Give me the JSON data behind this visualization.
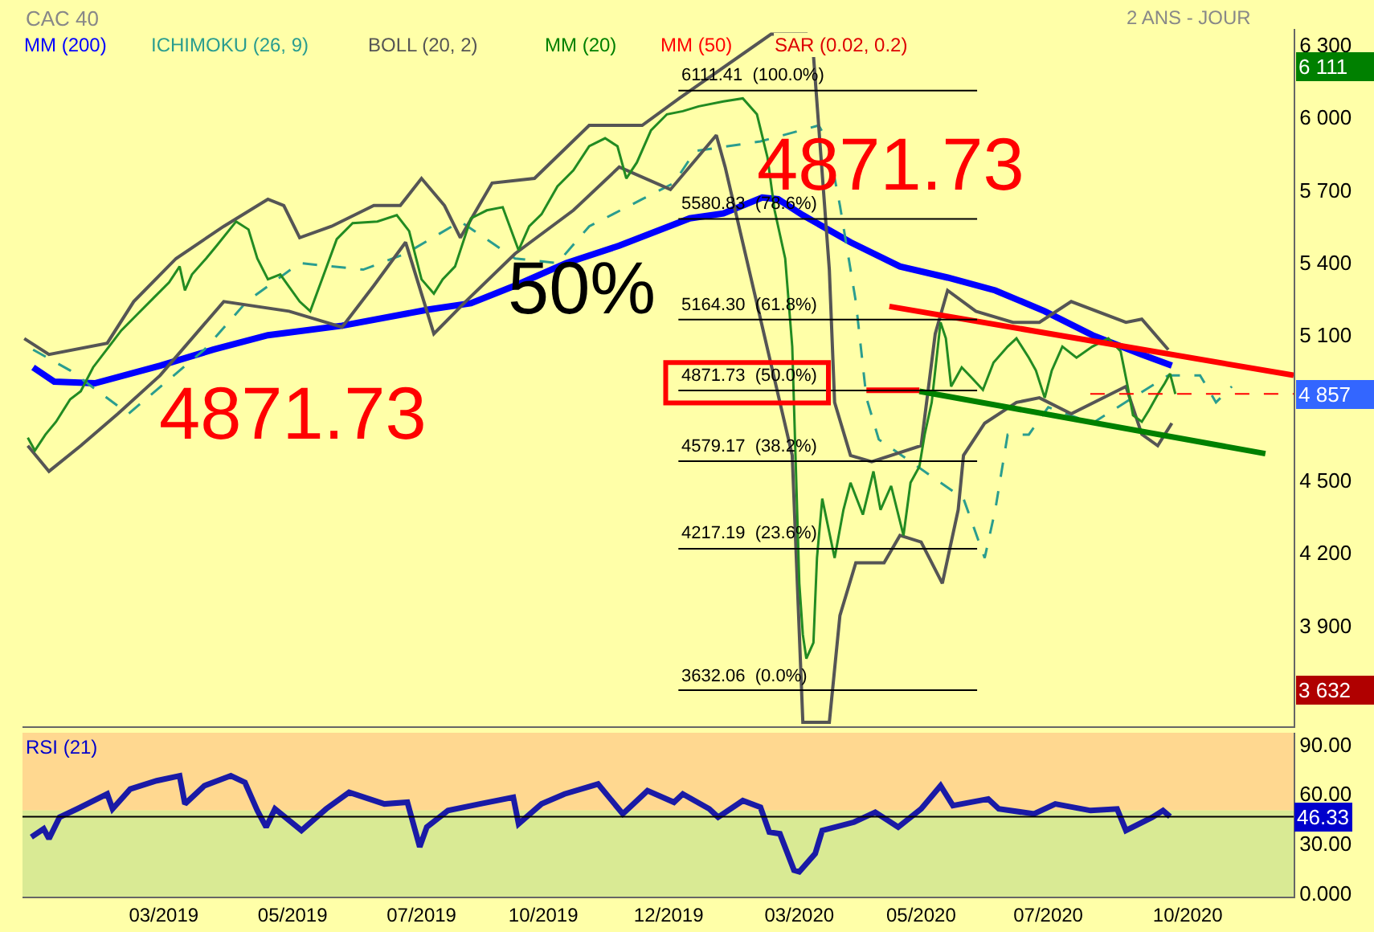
{
  "chart_data": [
    {
      "type": "line",
      "title": "CAC 40",
      "subtitle": "2 ANS - JOUR",
      "legend": "top left",
      "tick_labels": "y",
      "xlim": [
        "2018-12-11",
        "2020-11-30"
      ],
      "ylim": [
        3483,
        6366
      ],
      "yticks": [
        {
          "value": 3900,
          "label": "3 900"
        },
        {
          "value": 4200,
          "label": "4 200"
        },
        {
          "value": 4500,
          "label": "4 500"
        },
        {
          "value": 5100,
          "label": "5 100"
        },
        {
          "value": 5400,
          "label": "5 400"
        },
        {
          "value": 5700,
          "label": "5 700"
        },
        {
          "value": 6000,
          "label": "6 000"
        },
        {
          "value": 6300,
          "label": "6 300"
        }
      ],
      "series": [
        {
          "name": "MM (200)",
          "color": "#0000ff",
          "x": [
            "2018-12-17",
            "2018-12-29",
            "2019-01-21",
            "2019-02-27",
            "2019-03-29",
            "2019-04-29",
            "2019-06-10",
            "2019-07-29",
            "2019-08-22",
            "2019-09-16",
            "2019-10-15",
            "2019-11-14",
            "2019-12-24",
            "2020-01-12",
            "2020-02-03",
            "2020-02-12",
            "2020-02-26",
            "2020-03-24",
            "2020-04-21",
            "2020-05-18",
            "2020-06-14",
            "2020-07-12",
            "2020-08-08",
            "2020-09-05",
            "2020-09-22"
          ],
          "values": [
            4967,
            4908,
            4901,
            4974,
            5040,
            5100,
            5139,
            5206,
            5232,
            5305,
            5398,
            5470,
            5583,
            5603,
            5669,
            5662,
            5596,
            5484,
            5384,
            5338,
            5285,
            5199,
            5100,
            5020,
            4974
          ]
        },
        {
          "name": "ICHIMOKU (26, 9)",
          "color": "#2a9d8f",
          "line_style": "dashed",
          "x": [
            "2018-12-17",
            "2019-01-07",
            "2019-02-09",
            "2019-03-24",
            "2019-04-17",
            "2019-05-17",
            "2019-06-22",
            "2019-07-16",
            "2019-08-16",
            "2019-09-16",
            "2019-10-10",
            "2019-10-28",
            "2019-11-27",
            "2019-12-15",
            "2019-12-27",
            "2020-02-02",
            "2020-03-06",
            "2020-03-11",
            "2020-03-18",
            "2020-03-27",
            "2020-04-02",
            "2020-04-09",
            "2020-05-27",
            "2020-06-08",
            "2020-06-14",
            "2020-06-21",
            "2020-07-03",
            "2020-07-14",
            "2020-08-08",
            "2020-09-20",
            "2020-10-08",
            "2020-10-17",
            "2020-10-26"
          ],
          "values": [
            5040,
            4954,
            4775,
            5040,
            5239,
            5398,
            5371,
            5437,
            5570,
            5417,
            5398,
            5550,
            5662,
            5729,
            5861,
            5901,
            5967,
            5901,
            5636,
            5239,
            4841,
            4669,
            4424,
            4179,
            4378,
            4689,
            4689,
            4802,
            4736,
            4934,
            4934,
            4822,
            4888
          ]
        },
        {
          "name": "BOLL (20, 2)",
          "color": "#555555",
          "x": [
            "2018-12-12",
            "2018-12-26",
            "2019-01-28",
            "2019-02-12",
            "2019-03-08",
            "2019-04-04",
            "2019-04-29",
            "2019-05-08",
            "2019-05-17",
            "2019-06-04",
            "2019-06-28",
            "2019-07-13",
            "2019-07-25",
            "2019-08-07",
            "2019-08-16",
            "2019-09-03",
            "2019-09-27",
            "2019-10-28",
            "2019-11-27",
            "2019-12-18",
            "2020-02-08",
            "2020-02-28",
            "2020-03-03",
            "2020-03-12",
            "2020-03-15",
            "2020-03-24",
            "2020-04-05",
            "2020-05-03",
            "2020-05-11",
            "2020-05-18",
            "2020-06-03",
            "2020-06-24",
            "2020-07-09",
            "2020-07-27",
            "2020-08-27",
            "2020-09-05",
            "2020-09-20"
          ],
          "values": [
            5086,
            5020,
            5067,
            5239,
            5417,
            5550,
            5662,
            5636,
            5503,
            5550,
            5636,
            5636,
            5748,
            5636,
            5503,
            5729,
            5748,
            5967,
            5967,
            6079,
            6344,
            6344,
            6258,
            5371,
            4822,
            4603,
            4577,
            4643,
            5106,
            5285,
            5199,
            5153,
            5153,
            5239,
            5153,
            5166,
            5040
          ]
        },
        {
          "color": "#555555",
          "x": [
            "2018-12-14",
            "2018-12-26",
            "2019-01-13",
            "2019-02-03",
            "2019-02-27",
            "2019-04-04",
            "2019-05-11",
            "2019-06-10",
            "2019-06-28",
            "2019-07-16",
            "2019-08-01",
            "2019-08-19",
            "2019-09-16",
            "2019-10-19",
            "2019-11-14",
            "2019-12-13",
            "2020-01-08",
            "2020-01-13",
            "2020-02-20",
            "2020-02-26",
            "2020-03-12",
            "2020-03-18",
            "2020-03-27",
            "2020-04-12",
            "2020-04-21",
            "2020-05-03",
            "2020-05-15",
            "2020-05-24",
            "2020-05-27",
            "2020-06-08",
            "2020-06-26",
            "2020-07-09",
            "2020-07-27",
            "2020-08-27",
            "2020-09-05",
            "2020-09-14",
            "2020-09-22"
          ],
          "values": [
            4643,
            4537,
            4643,
            4775,
            4934,
            5239,
            5199,
            5133,
            5305,
            5484,
            5106,
            5239,
            5437,
            5616,
            5795,
            5702,
            5927,
            5795,
            4603,
            3500,
            3500,
            3941,
            4159,
            4159,
            4272,
            4245,
            4074,
            4378,
            4603,
            4736,
            4822,
            4841,
            4775,
            4888,
            4690,
            4643,
            4736
          ]
        },
        {
          "name": "MM (20)",
          "color": "#008000"
        },
        {
          "name": "MM (50)",
          "color": "#ff0000"
        },
        {
          "name": "SAR (0.02, 0.2)",
          "color": "#dd0000"
        },
        {
          "color": "#228b22",
          "x": [
            "2018-12-14",
            "2018-12-18",
            "2018-12-24",
            "2018-12-30",
            "2019-01-07",
            "2019-01-13",
            "2019-01-20",
            "2019-01-29",
            "2019-02-05",
            "2019-02-14",
            "2019-02-23",
            "2019-03-04",
            "2019-03-10",
            "2019-03-13",
            "2019-03-17",
            "2019-03-25",
            "2019-03-31",
            "2019-04-11",
            "2019-04-18",
            "2019-04-23",
            "2019-04-29",
            "2019-05-06",
            "2019-05-17",
            "2019-05-23",
            "2019-05-29",
            "2019-06-07",
            "2019-06-16",
            "2019-06-30",
            "2019-07-11",
            "2019-07-18",
            "2019-07-25",
            "2019-08-01",
            "2019-08-06",
            "2019-08-13",
            "2019-08-22",
            "2019-08-31",
            "2019-09-09",
            "2019-09-18",
            "2019-09-24",
            "2019-10-01",
            "2019-10-10",
            "2019-10-19",
            "2019-10-28",
            "2019-11-06",
            "2019-11-13",
            "2019-11-18",
            "2019-11-24",
            "2019-12-02",
            "2019-12-11",
            "2019-12-20",
            "2019-12-29",
            "2020-01-12",
            "2020-01-23",
            "2020-01-31",
            "2020-02-06",
            "2020-02-10",
            "2020-02-16",
            "2020-02-20",
            "2020-02-24",
            "2020-02-26",
            "2020-02-28",
            "2020-03-03",
            "2020-03-05",
            "2020-03-08",
            "2020-03-15",
            "2020-03-20",
            "2020-03-24",
            "2020-03-31",
            "2020-04-06",
            "2020-04-10",
            "2020-04-16",
            "2020-04-23",
            "2020-04-27",
            "2020-05-02",
            "2020-05-05",
            "2020-05-09",
            "2020-05-14",
            "2020-05-17",
            "2020-05-20",
            "2020-05-26",
            "2020-06-01",
            "2020-06-07",
            "2020-06-13",
            "2020-06-21",
            "2020-06-26",
            "2020-07-03",
            "2020-07-07",
            "2020-07-12",
            "2020-07-16",
            "2020-07-22",
            "2020-07-30",
            "2020-08-08",
            "2020-08-17",
            "2020-08-24",
            "2020-08-28",
            "2020-08-31",
            "2020-09-05",
            "2020-09-09",
            "2020-09-14",
            "2020-09-18",
            "2020-09-21",
            "2020-09-24"
          ],
          "values": [
            4676,
            4623,
            4689,
            4742,
            4835,
            4868,
            4967,
            5053,
            5120,
            5186,
            5252,
            5318,
            5384,
            5285,
            5351,
            5417,
            5470,
            5570,
            5537,
            5417,
            5331,
            5351,
            5239,
            5199,
            5318,
            5497,
            5563,
            5570,
            5596,
            5530,
            5331,
            5272,
            5331,
            5384,
            5583,
            5616,
            5629,
            5451,
            5550,
            5600,
            5715,
            5781,
            5881,
            5914,
            5881,
            5748,
            5814,
            5947,
            6013,
            6026,
            6046,
            6066,
            6079,
            6013,
            5834,
            5616,
            5417,
            5053,
            4074,
            3862,
            3763,
            3829,
            4179,
            4424,
            4179,
            4378,
            4490,
            4358,
            4537,
            4378,
            4477,
            4272,
            4490,
            4557,
            4689,
            4822,
            5153,
            5087,
            4888,
            4967,
            4921,
            4874,
            4987,
            5053,
            5087,
            5007,
            4954,
            4841,
            4954,
            5053,
            5007,
            5053,
            5087,
            5033,
            4888,
            4769,
            4742,
            4789,
            4855,
            4901,
            4941,
            4857
          ]
        },
        {
          "color": "#ff0000",
          "x": [
            "2020-04-15",
            "2020-11-30"
          ],
          "values": [
            5219,
            4934
          ]
        },
        {
          "color": "#008000",
          "x": [
            "2020-05-02",
            "2020-11-14"
          ],
          "values": [
            4868,
            4610
          ]
        },
        {
          "color": "#ff0000",
          "x": [
            "2020-04-02",
            "2020-05-02"
          ],
          "values": [
            4872,
            4872
          ]
        }
      ],
      "ref_lines": [
        {
          "axis": "y",
          "value": 6111.41,
          "label": "6111.41  (100.0%)",
          "color": "#000000"
        },
        {
          "axis": "y",
          "value": 5580.83,
          "label": "5580.83  (78.6%)",
          "color": "#000000"
        },
        {
          "axis": "y",
          "value": 5164.3,
          "label": "5164.30  (61.8%)",
          "color": "#000000"
        },
        {
          "axis": "y",
          "value": 4871.73,
          "label": "4871.73  (50.0%)",
          "color": "#000000"
        },
        {
          "axis": "y",
          "value": 4579.17,
          "label": "4579.17  (38.2%)",
          "color": "#000000"
        },
        {
          "axis": "y",
          "value": 4217.19,
          "label": "4217.19  (23.6%)",
          "color": "#000000"
        },
        {
          "axis": "y",
          "value": 3632.06,
          "label": "3632.06  (0.0%)",
          "color": "#000000"
        },
        {
          "axis": "y",
          "value": 4857,
          "label": null,
          "color": "#ff0000",
          "line_style": "dashed"
        }
      ],
      "annotations": [
        "4871.73",
        "4871.73",
        "50%",
        "6 111",
        "4 857",
        "3 632"
      ]
    },
    {
      "type": "line",
      "title": "RSI (21)",
      "xlim": [
        "2018-12-11",
        "2020-11-30"
      ],
      "xticks": [
        {
          "value": "2019-03-01",
          "label": "03/2019"
        },
        {
          "value": "2019-05-13",
          "label": "05/2019"
        },
        {
          "value": "2019-07-25",
          "label": "07/2019"
        },
        {
          "value": "2019-10-02",
          "label": "10/2019"
        },
        {
          "value": "2019-12-12",
          "label": "12/2019"
        },
        {
          "value": "2020-02-24",
          "label": "03/2020"
        },
        {
          "value": "2020-05-03",
          "label": "05/2020"
        },
        {
          "value": "2020-07-14",
          "label": "07/2020"
        },
        {
          "value": "2020-10-01",
          "label": "10/2020"
        }
      ],
      "ylim": [
        -2,
        97
      ],
      "yticks": [
        {
          "value": 0,
          "label": "0.000"
        },
        {
          "value": 30,
          "label": "30.00"
        },
        {
          "value": 60,
          "label": "60.00"
        },
        {
          "value": 90,
          "label": "90.00"
        }
      ],
      "series": [
        {
          "color": "#1a1aa6",
          "x": [
            "2018-12-16",
            "2018-12-23",
            "2018-12-26",
            "2019-01-01",
            "2019-01-11",
            "2019-01-28",
            "2019-01-31",
            "2019-02-10",
            "2019-02-25",
            "2019-03-10",
            "2019-03-13",
            "2019-03-24",
            "2019-04-08",
            "2019-04-16",
            "2019-04-23",
            "2019-04-28",
            "2019-05-03",
            "2019-05-18",
            "2019-06-01",
            "2019-06-14",
            "2019-07-04",
            "2019-07-17",
            "2019-07-24",
            "2019-07-28",
            "2019-08-09",
            "2019-08-27",
            "2019-09-15",
            "2019-09-18",
            "2019-10-01",
            "2019-10-14",
            "2019-11-02",
            "2019-11-16",
            "2019-11-30",
            "2019-12-15",
            "2019-12-20",
            "2020-01-04",
            "2020-01-09",
            "2020-01-23",
            "2020-02-02",
            "2020-02-07",
            "2020-02-13",
            "2020-02-21",
            "2020-02-24",
            "2020-03-04",
            "2020-03-08",
            "2020-03-26",
            "2020-04-07",
            "2020-04-20",
            "2020-05-03",
            "2020-05-14",
            "2020-05-21",
            "2020-06-10",
            "2020-06-16",
            "2020-07-06",
            "2020-07-18",
            "2020-08-07",
            "2020-08-22",
            "2020-08-27",
            "2020-09-11",
            "2020-09-17",
            "2020-09-21"
          ],
          "values": [
            34,
            39,
            33,
            46,
            51,
            60,
            51,
            63,
            68,
            71,
            54,
            65,
            71,
            67,
            50,
            40,
            51,
            38,
            51,
            61,
            54,
            55,
            28,
            40,
            50,
            54,
            58,
            42,
            54,
            60,
            66,
            48,
            62,
            55,
            60,
            51,
            46,
            56,
            52,
            37,
            36,
            14,
            13,
            24,
            38,
            43,
            49,
            40,
            51,
            65,
            53,
            57,
            51,
            48,
            54,
            50,
            51,
            38,
            46,
            50,
            46.33
          ]
        }
      ],
      "ref_lines": [
        {
          "axis": "y",
          "value": 46.33,
          "label": "46.33",
          "color": "#000000"
        }
      ],
      "bands": [
        {
          "axis": "y",
          "from": 50,
          "to": 97,
          "color": "#ffd890"
        },
        {
          "axis": "y",
          "from": -2,
          "to": 50,
          "color": "#d9ea94"
        }
      ]
    }
  ]
}
